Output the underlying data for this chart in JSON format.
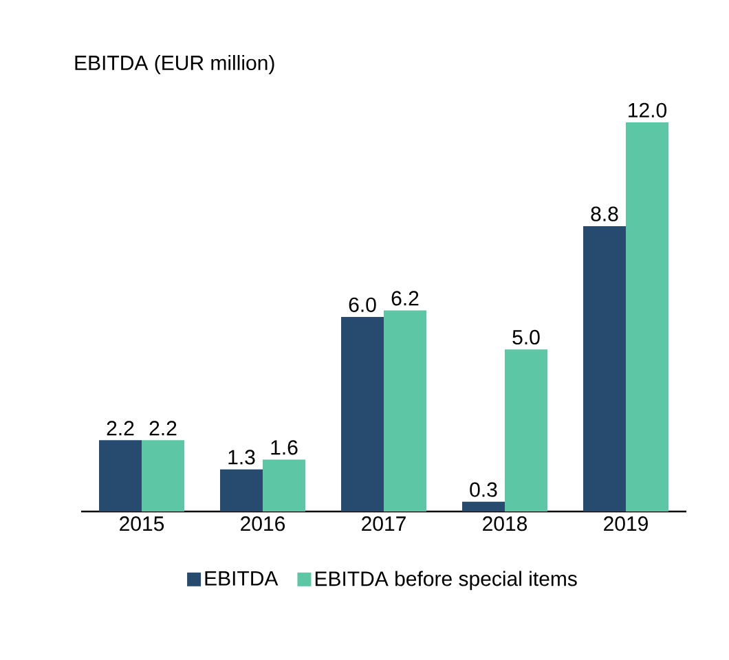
{
  "chart_data": {
    "type": "bar",
    "title": "EBITDA (EUR million)",
    "categories": [
      "2015",
      "2016",
      "2017",
      "2018",
      "2019"
    ],
    "series": [
      {
        "name": "EBITDA",
        "color": "#264b6e",
        "values": [
          2.2,
          1.3,
          6.0,
          0.3,
          8.8
        ],
        "value_labels": [
          "2.2",
          "1.3",
          "6.0",
          "0.3",
          "8.8"
        ]
      },
      {
        "name": "EBITDA before special items",
        "color": "#5cc6a5",
        "values": [
          2.2,
          1.6,
          6.2,
          5.0,
          12.0
        ],
        "value_labels": [
          "2.2",
          "1.6",
          "6.2",
          "5.0",
          "12.0"
        ]
      }
    ],
    "legend": "bottom"
  }
}
